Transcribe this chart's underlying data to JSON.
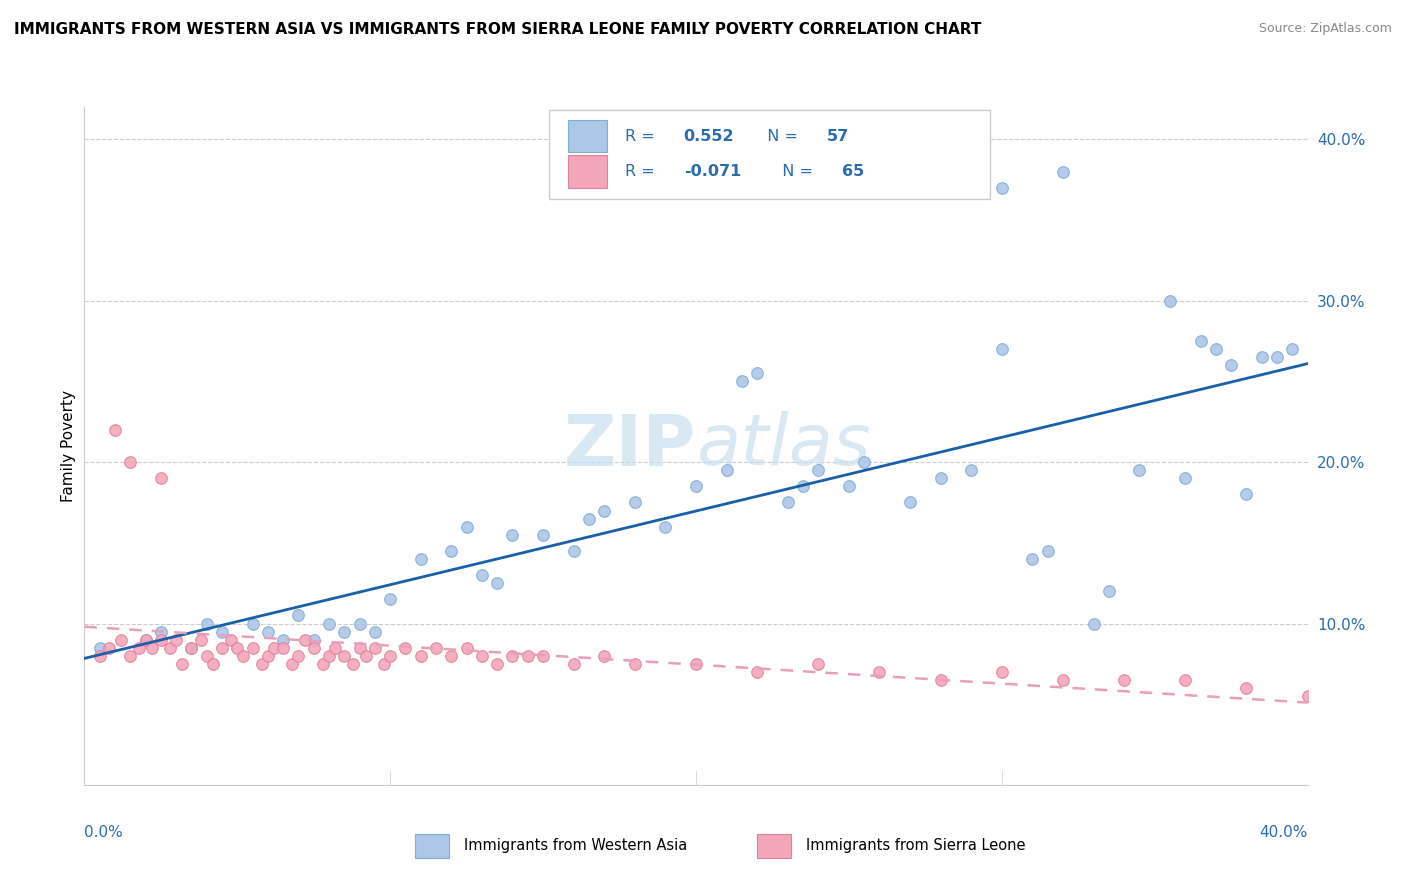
{
  "title": "IMMIGRANTS FROM WESTERN ASIA VS IMMIGRANTS FROM SIERRA LEONE FAMILY POVERTY CORRELATION CHART",
  "source": "Source: ZipAtlas.com",
  "ylabel": "Family Poverty",
  "blue_scatter_color": "#aec6e8",
  "blue_edge_color": "#7bafd4",
  "pink_scatter_color": "#f4a7b9",
  "pink_edge_color": "#e080a0",
  "blue_line_color": "#1a5fa8",
  "pink_line_color": "#e8a0b8",
  "legend_text_color": "#2B6CB0",
  "watermark_color": "#c8e0f0",
  "grid_color": "#cccccc",
  "xmin": 0.0,
  "xmax": 0.4,
  "ymin": 0.0,
  "ymax": 0.42,
  "blue_x": [
    0.005,
    0.02,
    0.025,
    0.035,
    0.04,
    0.045,
    0.055,
    0.06,
    0.065,
    0.07,
    0.075,
    0.08,
    0.085,
    0.09,
    0.095,
    0.1,
    0.11,
    0.12,
    0.125,
    0.13,
    0.135,
    0.14,
    0.15,
    0.16,
    0.165,
    0.17,
    0.18,
    0.19,
    0.2,
    0.21,
    0.215,
    0.22,
    0.23,
    0.235,
    0.24,
    0.25,
    0.255,
    0.27,
    0.28,
    0.29,
    0.3,
    0.31,
    0.315,
    0.32,
    0.33,
    0.335,
    0.345,
    0.355,
    0.36,
    0.365,
    0.37,
    0.375,
    0.38,
    0.385,
    0.39,
    0.395,
    0.3
  ],
  "blue_y": [
    0.085,
    0.09,
    0.095,
    0.085,
    0.1,
    0.095,
    0.1,
    0.095,
    0.09,
    0.105,
    0.09,
    0.1,
    0.095,
    0.1,
    0.095,
    0.115,
    0.14,
    0.145,
    0.16,
    0.13,
    0.125,
    0.155,
    0.155,
    0.145,
    0.165,
    0.17,
    0.175,
    0.16,
    0.185,
    0.195,
    0.25,
    0.255,
    0.175,
    0.185,
    0.195,
    0.185,
    0.2,
    0.175,
    0.19,
    0.195,
    0.37,
    0.14,
    0.145,
    0.38,
    0.1,
    0.12,
    0.195,
    0.3,
    0.19,
    0.275,
    0.27,
    0.26,
    0.18,
    0.265,
    0.265,
    0.27,
    0.27
  ],
  "pink_x": [
    0.005,
    0.008,
    0.01,
    0.012,
    0.015,
    0.018,
    0.02,
    0.022,
    0.025,
    0.028,
    0.03,
    0.032,
    0.035,
    0.038,
    0.04,
    0.042,
    0.045,
    0.048,
    0.05,
    0.052,
    0.055,
    0.058,
    0.06,
    0.062,
    0.065,
    0.068,
    0.07,
    0.072,
    0.075,
    0.078,
    0.08,
    0.082,
    0.085,
    0.088,
    0.09,
    0.092,
    0.095,
    0.098,
    0.1,
    0.105,
    0.11,
    0.115,
    0.12,
    0.125,
    0.13,
    0.135,
    0.14,
    0.145,
    0.15,
    0.16,
    0.17,
    0.18,
    0.2,
    0.22,
    0.24,
    0.26,
    0.28,
    0.3,
    0.32,
    0.34,
    0.36,
    0.38,
    0.4,
    0.015,
    0.025
  ],
  "pink_y": [
    0.08,
    0.085,
    0.22,
    0.09,
    0.08,
    0.085,
    0.09,
    0.085,
    0.09,
    0.085,
    0.09,
    0.075,
    0.085,
    0.09,
    0.08,
    0.075,
    0.085,
    0.09,
    0.085,
    0.08,
    0.085,
    0.075,
    0.08,
    0.085,
    0.085,
    0.075,
    0.08,
    0.09,
    0.085,
    0.075,
    0.08,
    0.085,
    0.08,
    0.075,
    0.085,
    0.08,
    0.085,
    0.075,
    0.08,
    0.085,
    0.08,
    0.085,
    0.08,
    0.085,
    0.08,
    0.075,
    0.08,
    0.08,
    0.08,
    0.075,
    0.08,
    0.075,
    0.075,
    0.07,
    0.075,
    0.07,
    0.065,
    0.07,
    0.065,
    0.065,
    0.065,
    0.06,
    0.055,
    0.2,
    0.19
  ]
}
